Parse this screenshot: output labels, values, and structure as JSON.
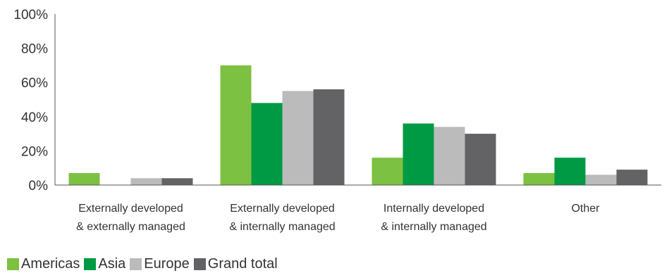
{
  "chart_data": {
    "type": "bar",
    "title": "",
    "xlabel": "",
    "ylabel": "",
    "ylim": [
      0,
      100
    ],
    "yticks": [
      0,
      20,
      40,
      60,
      80,
      100
    ],
    "ytick_labels": [
      "0%",
      "20%",
      "40%",
      "60%",
      "80%",
      "100%"
    ],
    "categories": [
      [
        "Externally developed",
        "& externally managed"
      ],
      [
        "Externally developed",
        "& internally managed"
      ],
      [
        "Internally developed",
        "& internally managed"
      ],
      [
        "Other"
      ]
    ],
    "series": [
      {
        "name": "Americas",
        "color": "#7cc142",
        "values": [
          7,
          70,
          16,
          7
        ]
      },
      {
        "name": "Asia",
        "color": "#009a44",
        "values": [
          0,
          48,
          36,
          16
        ]
      },
      {
        "name": "Europe",
        "color": "#bbbbbb",
        "values": [
          4,
          55,
          34,
          6
        ]
      },
      {
        "name": "Grand total",
        "color": "#636366",
        "values": [
          4,
          56,
          30,
          9
        ]
      }
    ],
    "grid": false,
    "legend_position": "bottom-left"
  }
}
